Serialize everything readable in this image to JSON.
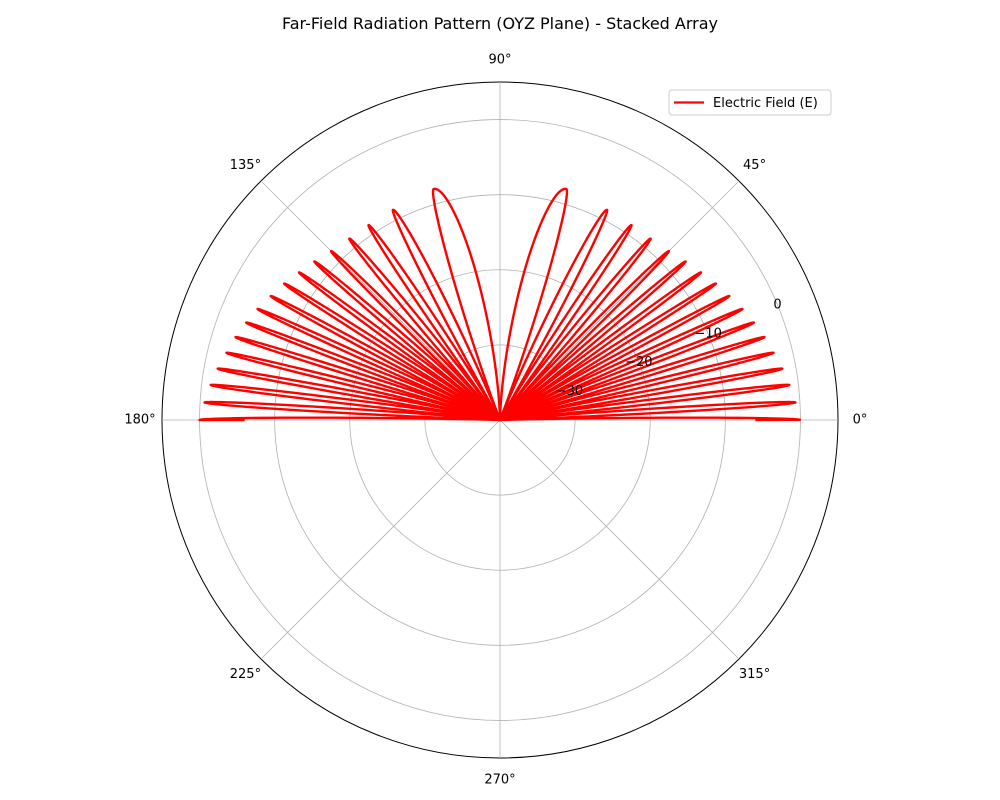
{
  "chart_data": {
    "type": "line",
    "projection": "polar",
    "title": "Far-Field Radiation Pattern (OYZ Plane) - Stacked Array",
    "theta_unit": "degrees",
    "angular_ticks": [
      {
        "deg": 0,
        "label": "0°"
      },
      {
        "deg": 45,
        "label": "45°"
      },
      {
        "deg": 90,
        "label": "90°"
      },
      {
        "deg": 135,
        "label": "135°"
      },
      {
        "deg": 180,
        "label": "180°"
      },
      {
        "deg": 225,
        "label": "225°"
      },
      {
        "deg": 270,
        "label": "270°"
      },
      {
        "deg": 315,
        "label": "315°"
      }
    ],
    "radial_ticks": [
      {
        "value": -30,
        "label": "−30"
      },
      {
        "value": -20,
        "label": "−20"
      },
      {
        "value": -10,
        "label": "−10"
      },
      {
        "value": 0,
        "label": "0"
      }
    ],
    "radial_label_angle_deg": 22.5,
    "rlim": [
      -40,
      5
    ],
    "grid": true,
    "legend_position": "top-right",
    "series": [
      {
        "name": "Electric Field (E)",
        "color": "#ff0000",
        "theta_range_deg": [
          0,
          180
        ],
        "floor_db": -40,
        "clip_db": -30,
        "lobes": [
          {
            "theta_deg": 0,
            "peak_db": 0
          },
          {
            "theta_deg": 3.4,
            "peak_db": -0.6
          },
          {
            "theta_deg": 6.9,
            "peak_db": -1.2
          },
          {
            "theta_deg": 10.3,
            "peak_db": -1.8
          },
          {
            "theta_deg": 13.8,
            "peak_db": -2.5
          },
          {
            "theta_deg": 17.4,
            "peak_db": -3.1
          },
          {
            "theta_deg": 21.0,
            "peak_db": -3.8
          },
          {
            "theta_deg": 24.6,
            "peak_db": -4.5
          },
          {
            "theta_deg": 28.4,
            "peak_db": -5.3
          },
          {
            "theta_deg": 32.3,
            "peak_db": -6.0
          },
          {
            "theta_deg": 36.3,
            "peak_db": -6.8
          },
          {
            "theta_deg": 40.5,
            "peak_db": -7.5
          },
          {
            "theta_deg": 45.0,
            "peak_db": -8.2
          },
          {
            "theta_deg": 50.3,
            "peak_db": -8.6
          },
          {
            "theta_deg": 56.0,
            "peak_db": -8.7
          },
          {
            "theta_deg": 63.0,
            "peak_db": -8.6
          },
          {
            "theta_deg": 74.0,
            "peak_db": -8.0
          },
          {
            "theta_deg": 106.0,
            "peak_db": -8.0
          },
          {
            "theta_deg": 117.0,
            "peak_db": -8.6
          },
          {
            "theta_deg": 124.0,
            "peak_db": -8.7
          },
          {
            "theta_deg": 129.7,
            "peak_db": -8.6
          },
          {
            "theta_deg": 135.0,
            "peak_db": -8.2
          },
          {
            "theta_deg": 139.5,
            "peak_db": -7.5
          },
          {
            "theta_deg": 143.7,
            "peak_db": -6.8
          },
          {
            "theta_deg": 147.7,
            "peak_db": -6.0
          },
          {
            "theta_deg": 151.6,
            "peak_db": -5.3
          },
          {
            "theta_deg": 155.4,
            "peak_db": -4.5
          },
          {
            "theta_deg": 159.0,
            "peak_db": -3.8
          },
          {
            "theta_deg": 162.6,
            "peak_db": -3.1
          },
          {
            "theta_deg": 166.2,
            "peak_db": -2.5
          },
          {
            "theta_deg": 169.7,
            "peak_db": -1.8
          },
          {
            "theta_deg": 173.1,
            "peak_db": -1.2
          },
          {
            "theta_deg": 176.6,
            "peak_db": -0.6
          },
          {
            "theta_deg": 180,
            "peak_db": 0
          }
        ]
      }
    ]
  }
}
